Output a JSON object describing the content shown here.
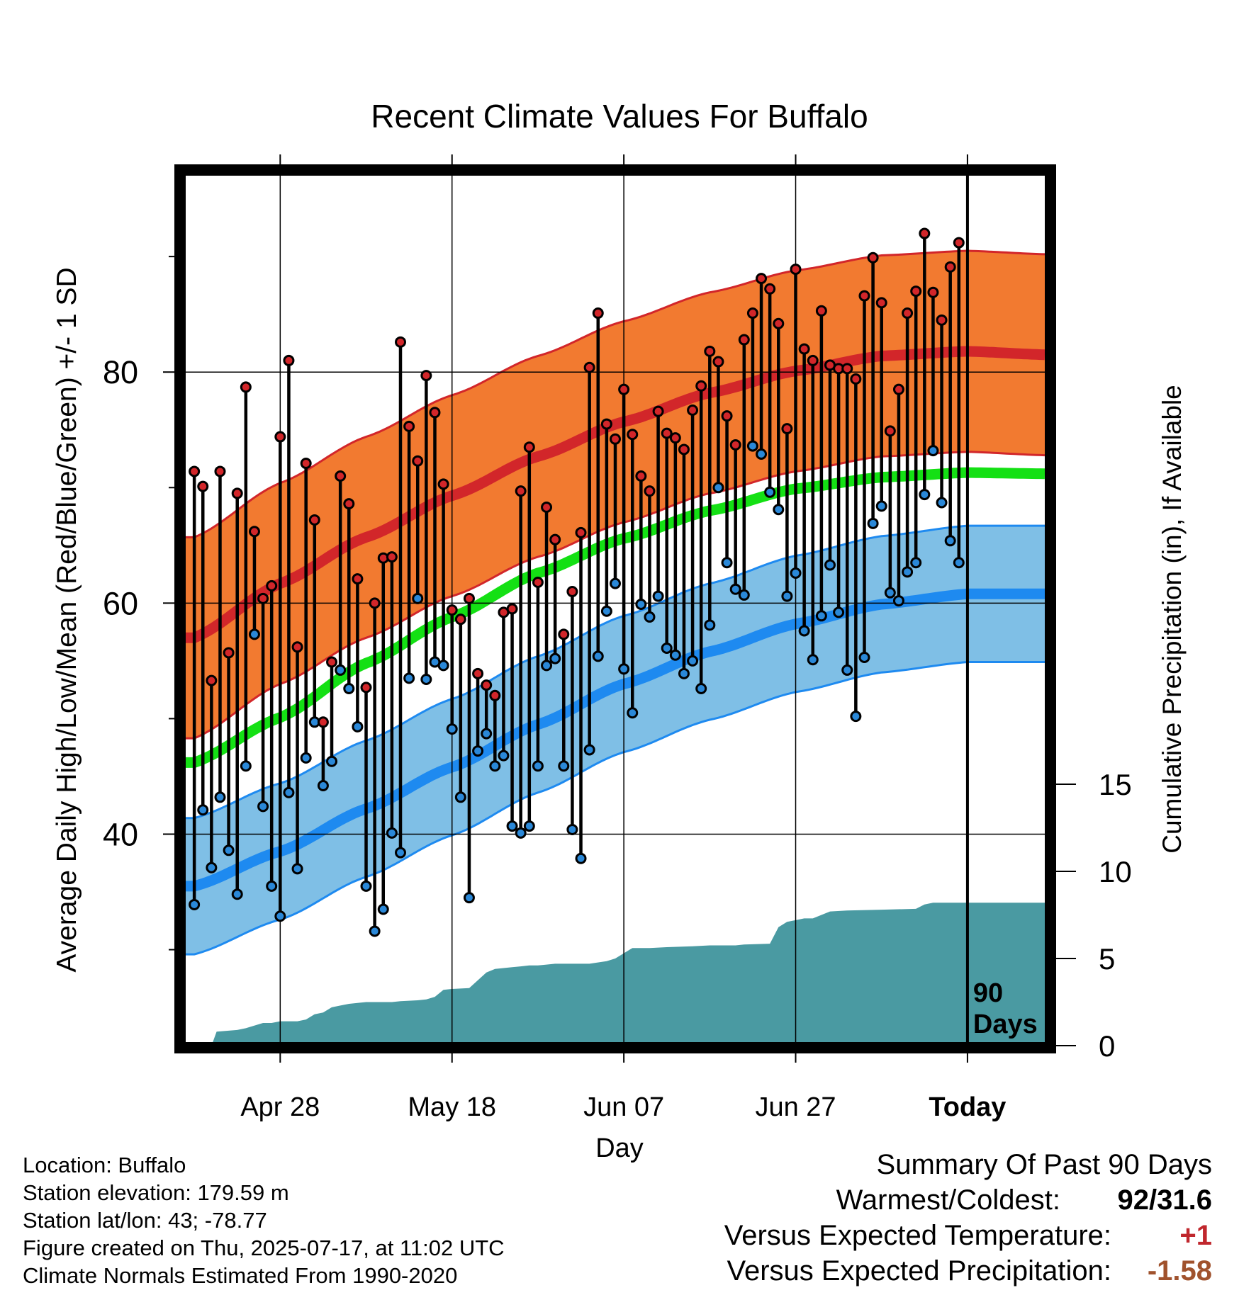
{
  "chart_data": {
    "type": "line",
    "title": "Recent Climate Values For Buffalo",
    "xlabel": "Day",
    "ylabel": "Average Daily High/Low/Mean (Red/Blue/Green) +/- 1 SD",
    "ylabel_right": "Cumulative Precipitation (in), If Available",
    "x_ticks": [
      "Apr 28",
      "May 18",
      "Jun 07",
      "Jun 27",
      "Today"
    ],
    "x_tick_days": [
      10,
      30,
      50,
      70,
      90
    ],
    "x_range_days": [
      -1,
      99
    ],
    "y_ticks": [
      40,
      60,
      80
    ],
    "y_minor_ticks": [
      30,
      50,
      70,
      90
    ],
    "ylim": [
      22,
      97
    ],
    "y2_ticks": [
      0,
      5,
      10,
      15
    ],
    "y2lim": [
      0,
      15
    ],
    "today_label": "90 Days",
    "grid": true,
    "normals": {
      "days": [
        0,
        10,
        20,
        30,
        40,
        50,
        60,
        70,
        80,
        90,
        99
      ],
      "high": [
        57.0,
        61.7,
        65.7,
        69.3,
        72.7,
        75.7,
        78.2,
        80.1,
        81.4,
        81.8,
        81.5
      ],
      "high_sd": 8.7,
      "mean": [
        46.2,
        50.1,
        54.8,
        58.8,
        62.6,
        65.6,
        68.0,
        69.9,
        70.9,
        71.3,
        71.2
      ],
      "low": [
        35.5,
        38.5,
        42.2,
        45.8,
        49.5,
        53.0,
        55.8,
        58.2,
        59.9,
        60.8,
        60.8
      ],
      "low_sd": 5.9
    },
    "observed": [
      {
        "high": 71.4,
        "low": 33.9
      },
      {
        "high": 70.1,
        "low": 42.1
      },
      {
        "high": 53.3,
        "low": 37.1
      },
      {
        "high": 71.4,
        "low": 43.2
      },
      {
        "high": 55.7,
        "low": 38.6
      },
      {
        "high": 69.5,
        "low": 34.8
      },
      {
        "high": 78.7,
        "low": 45.9
      },
      {
        "high": 66.2,
        "low": 57.3
      },
      {
        "high": 60.4,
        "low": 42.4
      },
      {
        "high": 61.5,
        "low": 35.5
      },
      {
        "high": 74.4,
        "low": 32.9
      },
      {
        "high": 81.0,
        "low": 43.6
      },
      {
        "high": 56.2,
        "low": 37.0
      },
      {
        "high": 72.1,
        "low": 46.6
      },
      {
        "high": 67.2,
        "low": 49.7
      },
      {
        "high": 49.7,
        "low": 44.2
      },
      {
        "high": 54.9,
        "low": 46.3
      },
      {
        "high": 71.0,
        "low": 54.2
      },
      {
        "high": 68.6,
        "low": 52.6
      },
      {
        "high": 62.1,
        "low": 49.3
      },
      {
        "high": 52.7,
        "low": 35.5
      },
      {
        "high": 60.0,
        "low": 31.6
      },
      {
        "high": 63.9,
        "low": 33.5
      },
      {
        "high": 64.0,
        "low": 40.1
      },
      {
        "high": 82.6,
        "low": 38.4
      },
      {
        "high": 75.3,
        "low": 53.5
      },
      {
        "high": 72.3,
        "low": 60.4
      },
      {
        "high": 79.7,
        "low": 53.4
      },
      {
        "high": 76.5,
        "low": 54.9
      },
      {
        "high": 70.3,
        "low": 54.6
      },
      {
        "high": 59.4,
        "low": 49.1
      },
      {
        "high": 58.6,
        "low": 43.2
      },
      {
        "high": 60.4,
        "low": 34.5
      },
      {
        "high": 53.9,
        "low": 47.2
      },
      {
        "high": 52.9,
        "low": 48.7
      },
      {
        "high": 52.0,
        "low": 45.9
      },
      {
        "high": 59.2,
        "low": 46.8
      },
      {
        "high": 59.5,
        "low": 40.7
      },
      {
        "high": 69.7,
        "low": 40.1
      },
      {
        "high": 73.5,
        "low": 40.7
      },
      {
        "high": 61.8,
        "low": 45.9
      },
      {
        "high": 68.3,
        "low": 54.6
      },
      {
        "high": 65.5,
        "low": 55.2
      },
      {
        "high": 57.3,
        "low": 45.9
      },
      {
        "high": 61.0,
        "low": 40.4
      },
      {
        "high": 66.1,
        "low": 37.9
      },
      {
        "high": 80.4,
        "low": 47.3
      },
      {
        "high": 85.1,
        "low": 55.4
      },
      {
        "high": 75.5,
        "low": 59.3
      },
      {
        "high": 74.2,
        "low": 61.7
      },
      {
        "high": 78.5,
        "low": 54.3
      },
      {
        "high": 74.6,
        "low": 50.5
      },
      {
        "high": 71.0,
        "low": 59.9
      },
      {
        "high": 69.7,
        "low": 58.8
      },
      {
        "high": 76.6,
        "low": 60.6
      },
      {
        "high": 74.7,
        "low": 56.1
      },
      {
        "high": 74.3,
        "low": 55.5
      },
      {
        "high": 73.3,
        "low": 53.9
      },
      {
        "high": 76.7,
        "low": 55.0
      },
      {
        "high": 78.8,
        "low": 52.6
      },
      {
        "high": 81.8,
        "low": 58.1
      },
      {
        "high": 80.9,
        "low": 70.0
      },
      {
        "high": 76.2,
        "low": 63.5
      },
      {
        "high": 73.7,
        "low": 61.2
      },
      {
        "high": 82.8,
        "low": 60.7
      },
      {
        "high": 85.1,
        "low": 73.6
      },
      {
        "high": 88.1,
        "low": 72.9
      },
      {
        "high": 87.2,
        "low": 69.6
      },
      {
        "high": 84.2,
        "low": 68.1
      },
      {
        "high": 75.1,
        "low": 60.6
      },
      {
        "high": 88.9,
        "low": 62.6
      },
      {
        "high": 82.0,
        "low": 57.6
      },
      {
        "high": 81.0,
        "low": 55.1
      },
      {
        "high": 85.3,
        "low": 58.9
      },
      {
        "high": 80.6,
        "low": 63.3
      },
      {
        "high": 80.3,
        "low": 59.2
      },
      {
        "high": 80.3,
        "low": 54.2
      },
      {
        "high": 79.4,
        "low": 50.2
      },
      {
        "high": 86.6,
        "low": 55.3
      },
      {
        "high": 89.9,
        "low": 66.9
      },
      {
        "high": 86.0,
        "low": 68.4
      },
      {
        "high": 74.9,
        "low": 60.9
      },
      {
        "high": 78.5,
        "low": 60.2
      },
      {
        "high": 85.1,
        "low": 62.7
      },
      {
        "high": 87.0,
        "low": 63.5
      },
      {
        "high": 92.0,
        "low": 69.4
      },
      {
        "high": 86.9,
        "low": 73.2
      },
      {
        "high": 84.5,
        "low": 68.7
      },
      {
        "high": 89.1,
        "low": 65.4
      },
      {
        "high": 91.2,
        "low": 63.5
      }
    ],
    "cumulative_precip": {
      "days": [
        0,
        2,
        2.6,
        5,
        6,
        8,
        9,
        10,
        12,
        13,
        14,
        15,
        16,
        17,
        18,
        19,
        20,
        23,
        24,
        26,
        27,
        28,
        29,
        30,
        32,
        34,
        35,
        37,
        38,
        39,
        40,
        41,
        42,
        46,
        48,
        49,
        50,
        51,
        52,
        53,
        55,
        58,
        60,
        62,
        63,
        64,
        67,
        68,
        69,
        70,
        71,
        72,
        73,
        74,
        76,
        80,
        84,
        85,
        86,
        99
      ],
      "values": [
        0,
        0,
        0.8,
        0.9,
        1.0,
        1.3,
        1.3,
        1.4,
        1.4,
        1.5,
        1.8,
        1.9,
        2.2,
        2.3,
        2.4,
        2.45,
        2.5,
        2.5,
        2.55,
        2.6,
        2.65,
        2.8,
        3.2,
        3.25,
        3.3,
        4.2,
        4.4,
        4.5,
        4.55,
        4.6,
        4.6,
        4.65,
        4.7,
        4.7,
        4.85,
        5.0,
        5.3,
        5.6,
        5.6,
        5.6,
        5.65,
        5.7,
        5.75,
        5.75,
        5.75,
        5.8,
        5.85,
        6.8,
        7.1,
        7.2,
        7.3,
        7.3,
        7.5,
        7.7,
        7.75,
        7.8,
        7.85,
        8.1,
        8.2,
        8.2
      ]
    },
    "colors": {
      "high_band": "#f27a30",
      "high_line": "#d2262a",
      "low_band": "#7fbfe6",
      "low_line": "#1e8af0",
      "mean_line": "#14e014",
      "precip": "#4a9aa2",
      "high_point": "#d2262a",
      "low_point": "#2a88d8"
    }
  },
  "footer": {
    "location": "Location: Buffalo",
    "elevation": "Station elevation: 179.59 m",
    "latlon": "Station lat/lon: 43; -78.77",
    "created": "Figure created on Thu, 2025-07-17, at 11:02 UTC",
    "normals": "Climate Normals Estimated From 1990-2020"
  },
  "summary": {
    "title": "Summary Of Past 90 Days",
    "warmest_label": "Warmest/Coldest:",
    "warmest_value": "92/31.6",
    "temp_label": "Versus Expected Temperature:",
    "temp_value": "+1",
    "precip_label": "Versus Expected Precipitation:",
    "precip_value": "-1.58",
    "temp_color": "#c0272d",
    "precip_color": "#a0522d"
  }
}
